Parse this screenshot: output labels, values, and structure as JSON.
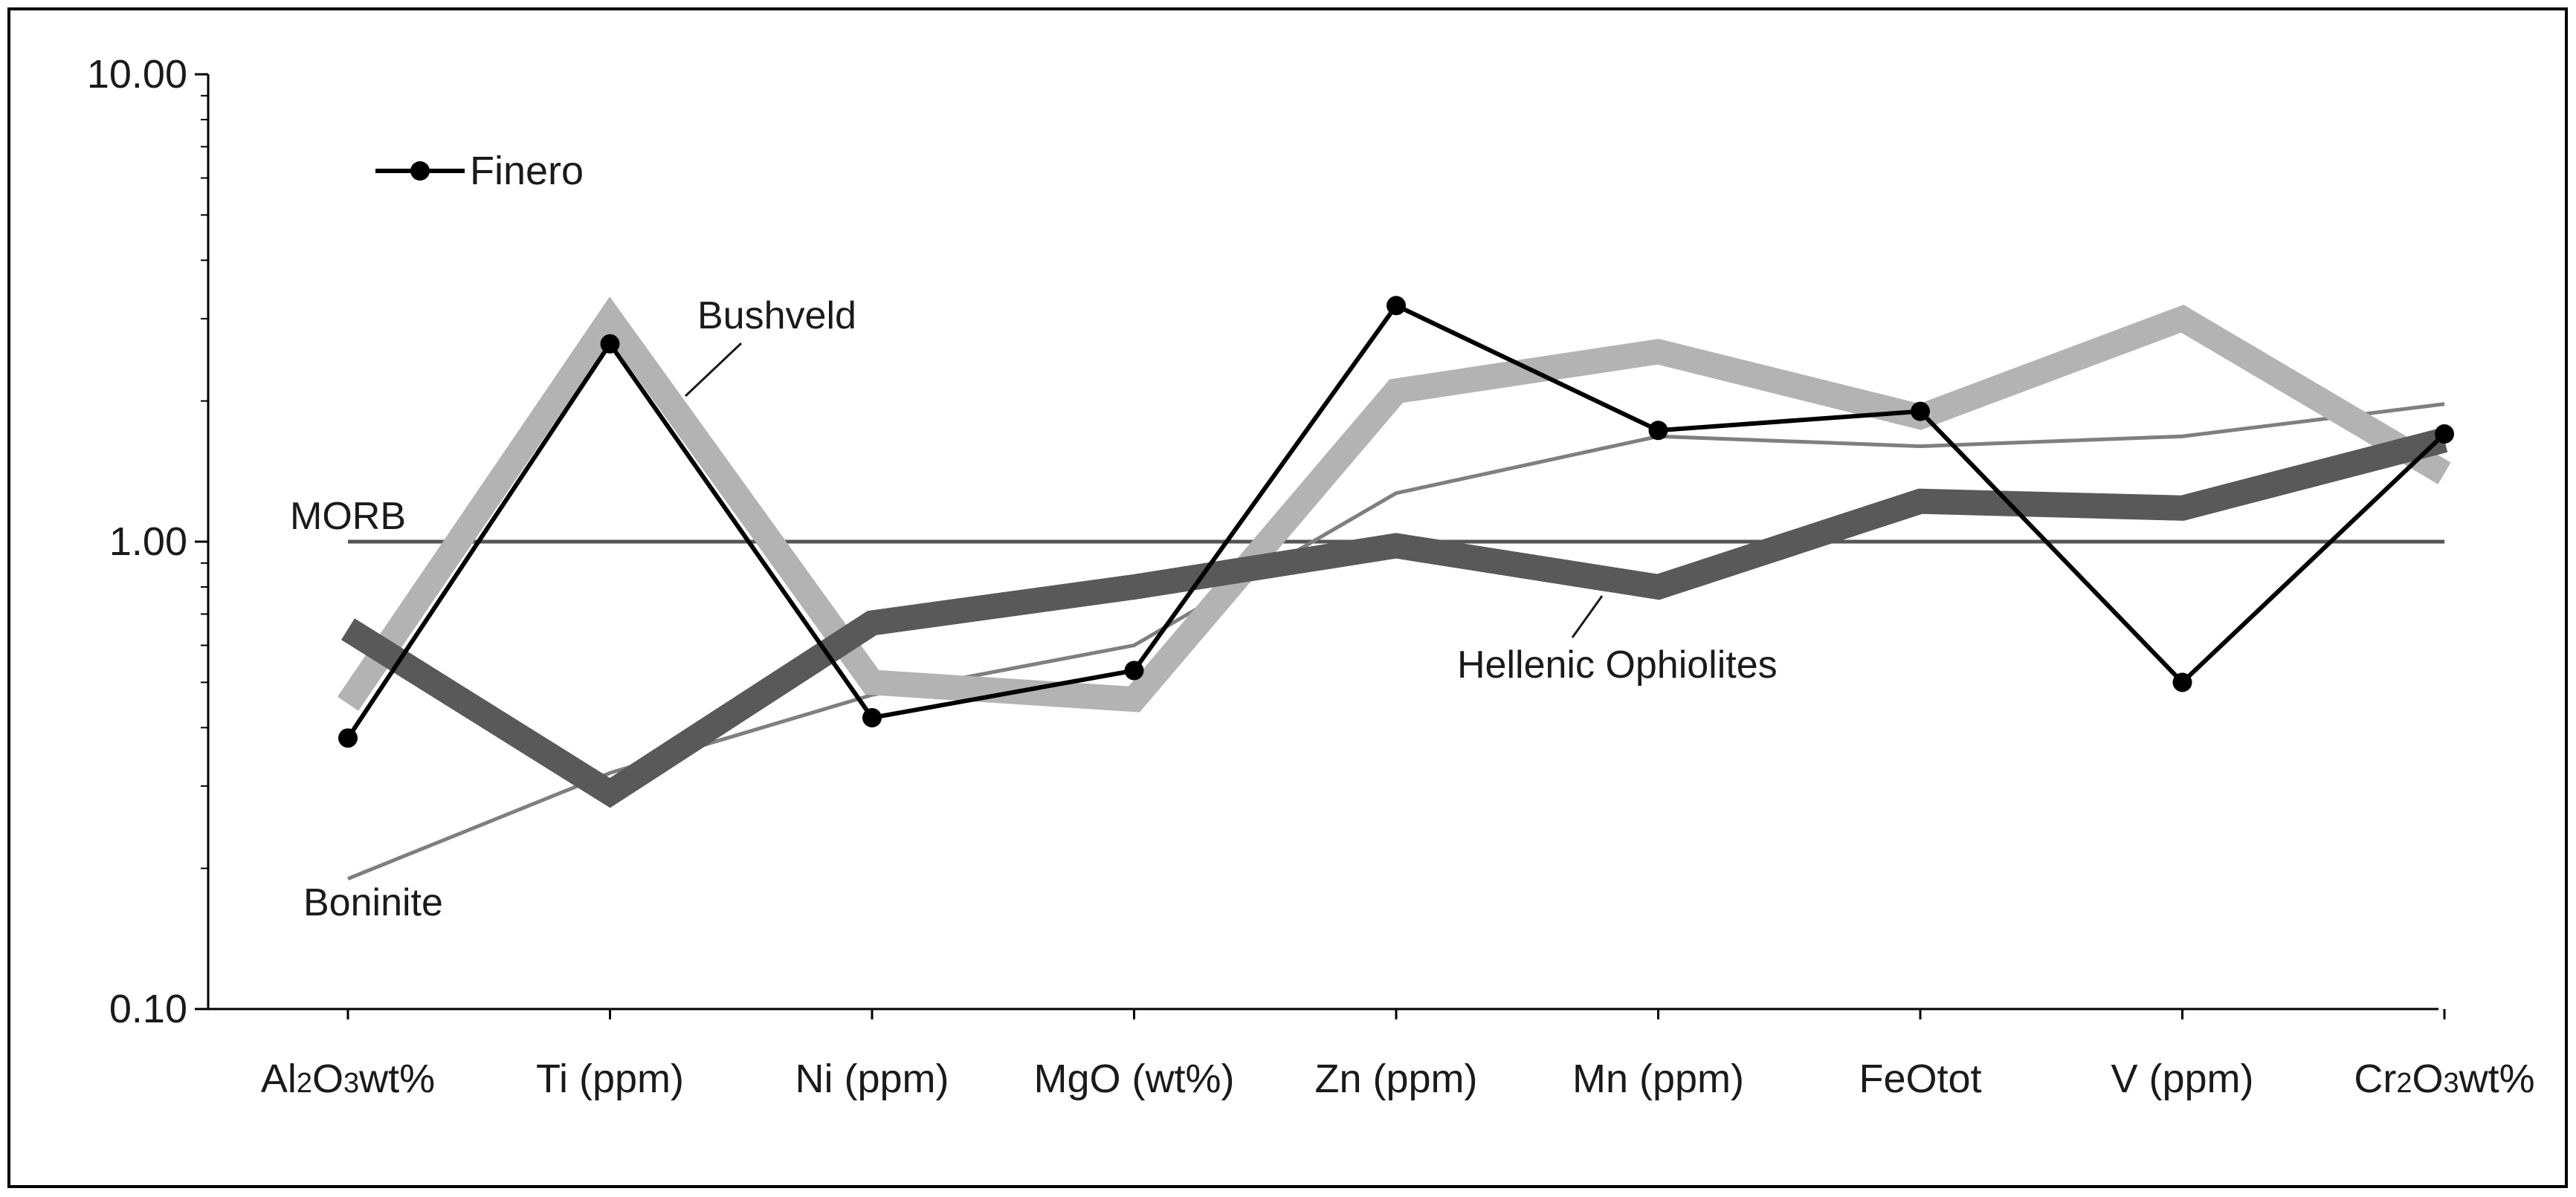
{
  "chart_data": {
    "type": "line",
    "title": "",
    "xlabel": "",
    "ylabel": "",
    "yscale": "log",
    "ylim": [
      0.1,
      10
    ],
    "yticks": [
      {
        "value": 0.1,
        "label": "0.10"
      },
      {
        "value": 1,
        "label": "1.00"
      },
      {
        "value": 10,
        "label": "10.00"
      }
    ],
    "categories": [
      {
        "label": "Al2O3wt%",
        "base": "Al",
        "sub": "2",
        "mid": "O",
        "sub2": "3",
        "rest": "wt%"
      },
      {
        "label": "Ti (ppm)"
      },
      {
        "label": "Ni (ppm)"
      },
      {
        "label": "MgO (wt%)"
      },
      {
        "label": "Zn (ppm)"
      },
      {
        "label": "Mn (ppm)"
      },
      {
        "label": "FeOtot"
      },
      {
        "label": "V (ppm)"
      },
      {
        "label": "Cr2O3wt%",
        "base": "Cr",
        "sub": "2",
        "mid": "O",
        "sub2": "3",
        "rest": "wt%"
      }
    ],
    "series": [
      {
        "name": "MORB",
        "color": "#555555",
        "style": "thin",
        "values": [
          1,
          1,
          1,
          1,
          1,
          1,
          1,
          1,
          1
        ]
      },
      {
        "name": "Boninite",
        "color": "#7f7f7f",
        "style": "thin",
        "values": [
          0.19,
          0.32,
          0.47,
          0.6,
          1.27,
          1.68,
          1.6,
          1.68,
          1.97
        ]
      },
      {
        "name": "Bushveld",
        "color": "#b3b3b3",
        "style": "thick",
        "values": [
          0.45,
          3.0,
          0.5,
          0.46,
          2.1,
          2.55,
          1.85,
          3.0,
          1.4
        ]
      },
      {
        "name": "Hellenic Ophiolites",
        "color": "#595959",
        "style": "thick",
        "values": [
          0.65,
          0.29,
          0.67,
          0.8,
          0.98,
          0.8,
          1.22,
          1.18,
          1.65
        ]
      },
      {
        "name": "Finero",
        "color": "#000000",
        "style": "marker",
        "values": [
          0.38,
          2.65,
          0.42,
          0.53,
          3.2,
          1.73,
          1.9,
          0.5,
          1.7
        ]
      }
    ],
    "legend": {
      "position": "top-left",
      "entries": [
        "Finero"
      ]
    },
    "annotations": [
      "Bushveld",
      "MORB",
      "Hellenic Ophiolites",
      "Boninite"
    ],
    "grid": false
  }
}
